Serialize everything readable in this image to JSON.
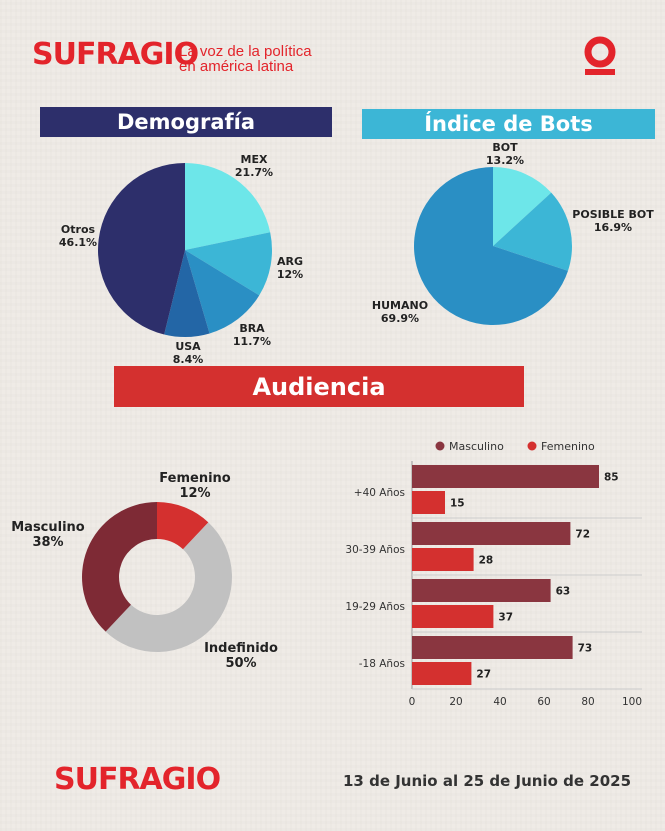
{
  "brand": {
    "name": "SUFRAGIO",
    "tagline_line1": "La voz de la política",
    "tagline_line2": "en américa latina",
    "accent": "#e3242b"
  },
  "sections": {
    "demografia": "Demografía",
    "bots": "Índice de Bots",
    "audiencia": "Audiencia"
  },
  "footer": {
    "date_range": "13 de Junio al 25 de Junio de 2025"
  },
  "chart_data": [
    {
      "type": "pie",
      "title": "Demografía",
      "slices": [
        {
          "label": "MEX",
          "value_label": "21.7%",
          "value": 21.7,
          "color": "#6de6e9"
        },
        {
          "label": "ARG",
          "value_label": "12%",
          "value": 12,
          "color": "#3cb6d6"
        },
        {
          "label": "BRA",
          "value_label": "11.7%",
          "value": 11.7,
          "color": "#2a8fc4"
        },
        {
          "label": "USA",
          "value_label": "8.4%",
          "value": 8.4,
          "color": "#2366a6"
        },
        {
          "label": "Otros",
          "value_label": "46.1%",
          "value": 46.1,
          "color": "#2d2f6b"
        }
      ]
    },
    {
      "type": "pie",
      "title": "Índice de Bots",
      "slices": [
        {
          "label": "BOT",
          "value_label": "13.2%",
          "value": 13.2,
          "color": "#6de6e9"
        },
        {
          "label": "POSIBLE BOT",
          "value_label": "16.9%",
          "value": 16.9,
          "color": "#3cb6d6"
        },
        {
          "label": "HUMANO",
          "value_label": "69.9%",
          "value": 69.9,
          "color": "#2a8fc4"
        }
      ]
    },
    {
      "type": "pie",
      "subtype": "donut",
      "title": "Audiencia",
      "slices": [
        {
          "label": "Femenino",
          "value_label": "12%",
          "value": 12,
          "color": "#d4302f"
        },
        {
          "label": "Indefinido",
          "value_label": "50%",
          "value": 50,
          "color": "#c1c1c1"
        },
        {
          "label": "Masculino",
          "value_label": "38%",
          "value": 38,
          "color": "#7e2a35"
        }
      ]
    },
    {
      "type": "bar",
      "orientation": "horizontal",
      "categories": [
        "+40 Años",
        "30-39 Años",
        "19-29 Años",
        "-18 Años"
      ],
      "series": [
        {
          "name": "Masculino",
          "values": [
            85,
            72,
            63,
            73
          ],
          "color": "#8a3640"
        },
        {
          "name": "Femenino",
          "values": [
            15,
            28,
            37,
            27
          ],
          "color": "#d4302f"
        }
      ],
      "xlim": [
        0,
        100
      ],
      "xticks": [
        "0",
        "20",
        "40",
        "60",
        "80",
        "100"
      ],
      "legend": "top"
    }
  ]
}
